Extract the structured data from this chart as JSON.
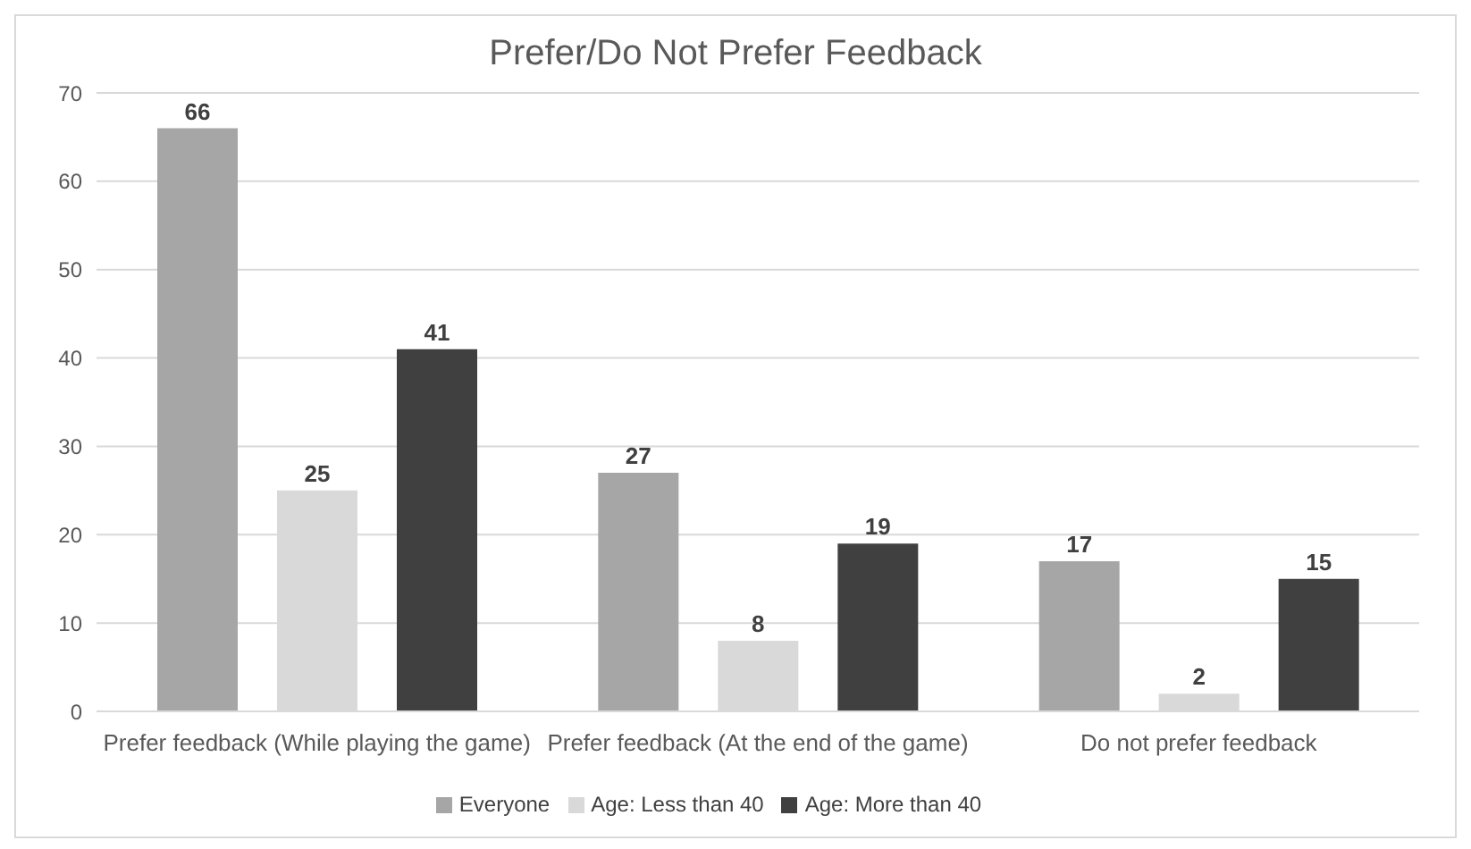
{
  "chart_data": {
    "type": "bar",
    "title": "Prefer/Do Not Prefer Feedback",
    "categories": [
      "Prefer feedback (While playing the game)",
      "Prefer feedback (At the end of the game)",
      "Do not prefer feedback"
    ],
    "series": [
      {
        "name": "Everyone",
        "color": "#a6a6a6",
        "values": [
          66,
          27,
          17
        ]
      },
      {
        "name": "Age: Less than 40",
        "color": "#d9d9d9",
        "values": [
          25,
          8,
          2
        ]
      },
      {
        "name": "Age: More than 40",
        "color": "#404040",
        "values": [
          41,
          19,
          15
        ]
      }
    ],
    "ylim": [
      0,
      70
    ],
    "yticks": [
      0,
      10,
      20,
      30,
      40,
      50,
      60,
      70
    ],
    "grid": "y",
    "legend": "bottom",
    "data_labels": true
  }
}
